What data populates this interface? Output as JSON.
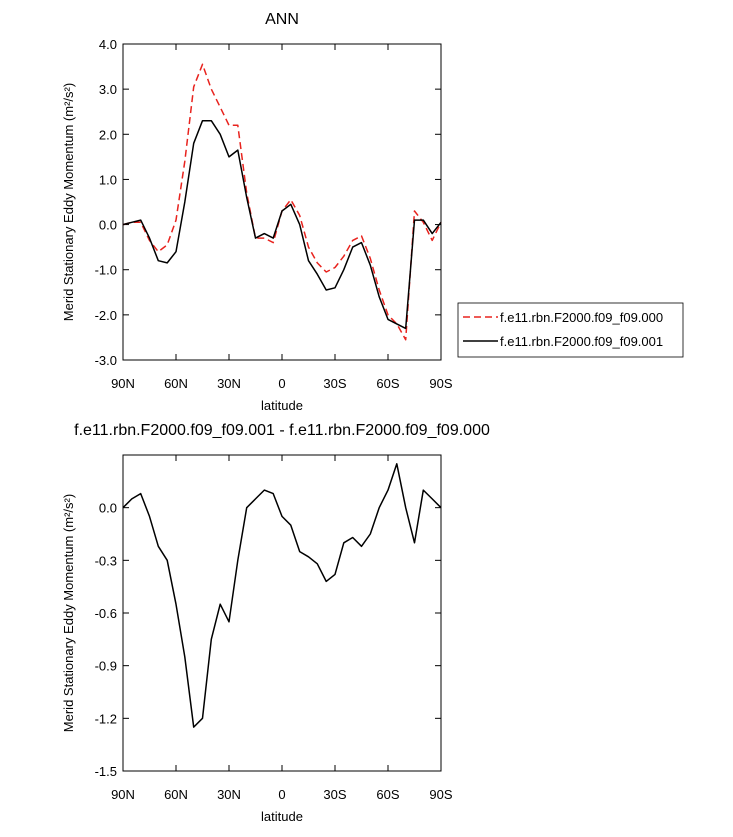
{
  "chart_data": [
    {
      "type": "line",
      "title": "ANN",
      "xlabel": "latitude",
      "ylabel": "Merid Stationary Eddy Momentum (m²/s²)",
      "x": [
        90,
        85,
        80,
        75,
        70,
        65,
        60,
        55,
        50,
        45,
        40,
        35,
        30,
        25,
        20,
        15,
        10,
        5,
        0,
        -5,
        -10,
        -15,
        -20,
        -25,
        -30,
        -35,
        -40,
        -45,
        -50,
        -55,
        -60,
        -65,
        -70,
        -75,
        -80,
        -85,
        -90
      ],
      "xlim": [
        90,
        -90
      ],
      "xticks": [
        {
          "value": 90,
          "label": "90N"
        },
        {
          "value": 60,
          "label": "60N"
        },
        {
          "value": 30,
          "label": "30N"
        },
        0,
        {
          "value": -30,
          "label": "30S"
        },
        {
          "value": -60,
          "label": "60S"
        },
        {
          "value": -90,
          "label": "90S"
        }
      ],
      "ylim": [
        -3,
        4
      ],
      "yticks": [
        {
          "value": -3,
          "label": "-3.0"
        },
        {
          "value": -2,
          "label": "-2.0"
        },
        {
          "value": -1,
          "label": "-1.0"
        },
        {
          "value": 0,
          "label": "0.0"
        },
        {
          "value": 1,
          "label": "1.0"
        },
        {
          "value": 2,
          "label": "2.0"
        },
        {
          "value": 3,
          "label": "3.0"
        },
        {
          "value": 4,
          "label": "4.0"
        }
      ],
      "series": [
        {
          "name": "f.e11.rbn.F2000.f09_f09.000",
          "color": "#e8231e",
          "dashed": true,
          "values": [
            0.0,
            0.05,
            0.05,
            -0.35,
            -0.6,
            -0.45,
            0.1,
            1.4,
            3.05,
            3.55,
            3.0,
            2.6,
            2.2,
            2.2,
            0.7,
            -0.3,
            -0.3,
            -0.4,
            0.3,
            0.55,
            0.2,
            -0.5,
            -0.85,
            -1.05,
            -0.95,
            -0.7,
            -0.35,
            -0.25,
            -0.75,
            -1.45,
            -2.0,
            -2.2,
            -2.55,
            0.3,
            0.05,
            -0.35,
            0.05
          ]
        },
        {
          "name": "f.e11.rbn.F2000.f09_f09.001",
          "color": "#000000",
          "dashed": false,
          "values": [
            0.0,
            0.05,
            0.1,
            -0.3,
            -0.8,
            -0.85,
            -0.6,
            0.5,
            1.8,
            2.3,
            2.3,
            2.0,
            1.5,
            1.65,
            0.6,
            -0.3,
            -0.2,
            -0.3,
            0.3,
            0.45,
            0.0,
            -0.8,
            -1.1,
            -1.45,
            -1.4,
            -1.0,
            -0.5,
            -0.4,
            -0.9,
            -1.6,
            -2.1,
            -2.2,
            -2.3,
            0.1,
            0.1,
            -0.2,
            0.05
          ]
        }
      ]
    },
    {
      "type": "line",
      "title": "f.e11.rbn.F2000.f09_f09.001 - f.e11.rbn.F2000.f09_f09.000",
      "xlabel": "latitude",
      "ylabel": "Merid Stationary Eddy Momentum (m²/s²)",
      "x": [
        90,
        85,
        80,
        75,
        70,
        65,
        60,
        55,
        50,
        45,
        40,
        35,
        30,
        25,
        20,
        15,
        10,
        5,
        0,
        -5,
        -10,
        -15,
        -20,
        -25,
        -30,
        -35,
        -40,
        -45,
        -50,
        -55,
        -60,
        -65,
        -70,
        -75,
        -80,
        -85,
        -90
      ],
      "xlim": [
        90,
        -90
      ],
      "xticks": [
        {
          "value": 90,
          "label": "90N"
        },
        {
          "value": 60,
          "label": "60N"
        },
        {
          "value": 30,
          "label": "30N"
        },
        0,
        {
          "value": -30,
          "label": "30S"
        },
        {
          "value": -60,
          "label": "60S"
        },
        {
          "value": -90,
          "label": "90S"
        }
      ],
      "ylim": [
        -1.5,
        0.3
      ],
      "yticks": [
        {
          "value": -1.5,
          "label": "-1.5"
        },
        {
          "value": -1.2,
          "label": "-1.2"
        },
        {
          "value": -0.9,
          "label": "-0.9"
        },
        {
          "value": -0.6,
          "label": "-0.6"
        },
        {
          "value": -0.3,
          "label": "-0.3"
        },
        {
          "value": 0,
          "label": "0.0"
        }
      ],
      "series": [
        {
          "color": "#000000",
          "dashed": false,
          "values": [
            0.0,
            0.05,
            0.08,
            -0.05,
            -0.22,
            -0.3,
            -0.55,
            -0.85,
            -1.25,
            -1.2,
            -0.75,
            -0.55,
            -0.65,
            -0.3,
            0.0,
            0.05,
            0.1,
            0.08,
            -0.05,
            -0.1,
            -0.25,
            -0.28,
            -0.32,
            -0.42,
            -0.38,
            -0.2,
            -0.17,
            -0.22,
            -0.15,
            0.0,
            0.1,
            0.25,
            0.0,
            -0.2,
            0.1,
            0.05,
            0.0
          ]
        }
      ]
    }
  ]
}
